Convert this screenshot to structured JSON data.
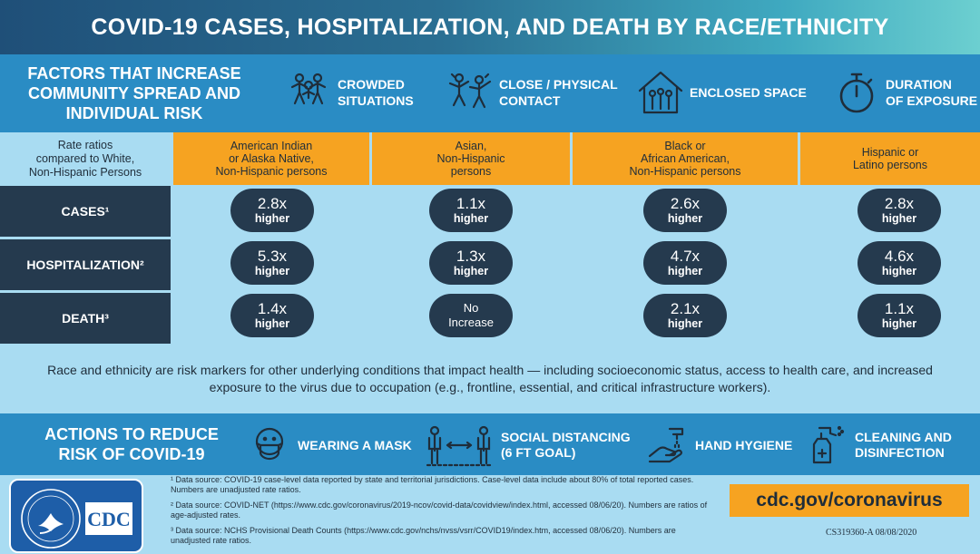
{
  "title": "COVID-19 CASES, HOSPITALIZATION, AND DEATH BY RACE/ETHNICITY",
  "factors": {
    "heading_lines": [
      "FACTORS THAT INCREASE",
      "COMMUNITY SPREAD AND",
      "INDIVIDUAL RISK"
    ],
    "items": [
      {
        "icon": "crowd-icon",
        "lines": [
          "CROWDED",
          "SITUATIONS"
        ]
      },
      {
        "icon": "people-contact-icon",
        "lines": [
          "CLOSE / PHYSICAL",
          "CONTACT"
        ]
      },
      {
        "icon": "house-icon",
        "lines": [
          "ENCLOSED SPACE"
        ]
      },
      {
        "icon": "stopwatch-icon",
        "lines": [
          "DURATION",
          "OF EXPOSURE"
        ]
      }
    ]
  },
  "table": {
    "corner_lines": [
      "Rate ratios",
      "compared to White,",
      "Non-Hispanic Persons"
    ],
    "columns": [
      {
        "lines": [
          "American Indian",
          "or Alaska Native,",
          "Non-Hispanic persons"
        ]
      },
      {
        "lines": [
          "Asian,",
          "Non-Hispanic",
          "persons"
        ]
      },
      {
        "lines": [
          "Black or",
          "African American,",
          "Non-Hispanic persons"
        ]
      },
      {
        "lines": [
          "Hispanic or",
          "Latino persons"
        ]
      }
    ],
    "rows": [
      {
        "label": "CASES¹",
        "cells": [
          {
            "value": "2.8x",
            "suffix": "higher"
          },
          {
            "value": "1.1x",
            "suffix": "higher"
          },
          {
            "value": "2.6x",
            "suffix": "higher"
          },
          {
            "value": "2.8x",
            "suffix": "higher"
          }
        ]
      },
      {
        "label": "HOSPITALIZATION²",
        "cells": [
          {
            "value": "5.3x",
            "suffix": "higher"
          },
          {
            "value": "1.3x",
            "suffix": "higher"
          },
          {
            "value": "4.7x",
            "suffix": "higher"
          },
          {
            "value": "4.6x",
            "suffix": "higher"
          }
        ]
      },
      {
        "label": "DEATH³",
        "cells": [
          {
            "value": "1.4x",
            "suffix": "higher"
          },
          {
            "value": "No",
            "suffix": "Increase"
          },
          {
            "value": "2.1x",
            "suffix": "higher"
          },
          {
            "value": "1.1x",
            "suffix": "higher"
          }
        ]
      }
    ]
  },
  "note": "Race and ethnicity are risk markers for other underlying conditions that impact health — including socioeconomic status, access to health care, and increased exposure to the virus due to occupation (e.g., frontline, essential, and critical infrastructure workers).",
  "actions": {
    "heading_lines": [
      "ACTIONS TO REDUCE",
      "RISK OF COVID-19"
    ],
    "items": [
      {
        "icon": "mask-icon",
        "lines": [
          "WEARING A MASK"
        ]
      },
      {
        "icon": "social-distance-icon",
        "lines": [
          "SOCIAL DISTANCING",
          "(6 FT GOAL)"
        ]
      },
      {
        "icon": "hand-washing-icon",
        "lines": [
          "HAND HYGIENE"
        ]
      },
      {
        "icon": "spray-bottle-icon",
        "lines": [
          "CLEANING AND",
          "DISINFECTION"
        ]
      }
    ]
  },
  "footer": {
    "logo_text": "CDC",
    "sources": [
      "¹ Data source: COVID-19 case-level data reported by state and territorial jurisdictions. Case-level data include about 80% of total reported cases. Numbers are unadjusted rate ratios.",
      "² Data source: COVID-NET (https://www.cdc.gov/coronavirus/2019-ncov/covid-data/covidview/index.html, accessed 08/06/20). Numbers are ratios of age-adjusted rates.",
      "³ Data source: NCHS Provisional Death Counts (https://www.cdc.gov/nchs/nvss/vsrr/COVID19/index.htm, accessed 08/06/20). Numbers are unadjusted rate ratios."
    ],
    "link": "cdc.gov/coronavirus",
    "doc_code": "CS319360-A 08/08/2020"
  },
  "colors": {
    "navy": "#253a4e",
    "blue": "#2a8cc4",
    "light_blue": "#a9dcf2",
    "orange": "#f6a321"
  }
}
